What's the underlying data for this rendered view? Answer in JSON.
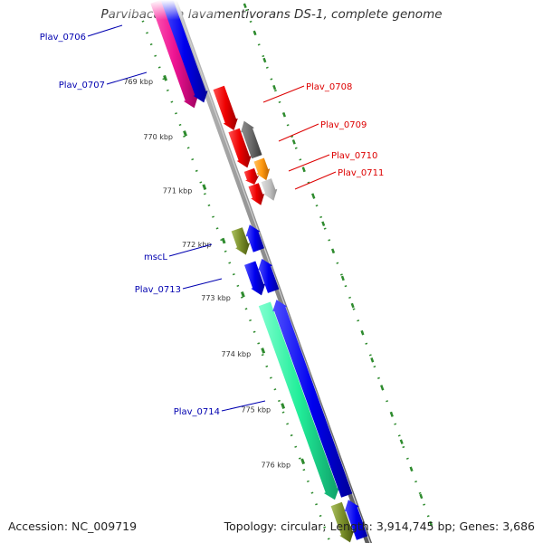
{
  "title": "Parvibaculum lavamentivorans DS-1, complete genome",
  "accession": "Accession: NC_009719",
  "summary": "Topology: circular; Length: 3,914,745 bp; Genes: 3,686",
  "colors": {
    "backbone": "#8a8a8a",
    "tick": "#2e8b2e",
    "label_left": "#0000b0",
    "label_right": "#dd0000"
  },
  "ticks": [
    {
      "label": "769 kbp"
    },
    {
      "label": "770 kbp"
    },
    {
      "label": "771 kbp"
    },
    {
      "label": "772 kbp"
    },
    {
      "label": "773 kbp"
    },
    {
      "label": "774 kbp"
    },
    {
      "label": "775 kbp"
    },
    {
      "label": "776 kbp"
    }
  ],
  "gene_labels_left": [
    {
      "label": "Plav_0706"
    },
    {
      "label": "Plav_0707"
    },
    {
      "label": "mscL"
    },
    {
      "label": "Plav_0713"
    },
    {
      "label": "Plav_0714"
    }
  ],
  "gene_labels_right": [
    {
      "label": "Plav_0708"
    },
    {
      "label": "Plav_0709"
    },
    {
      "label": "Plav_0710"
    },
    {
      "label": "Plav_0711"
    }
  ]
}
